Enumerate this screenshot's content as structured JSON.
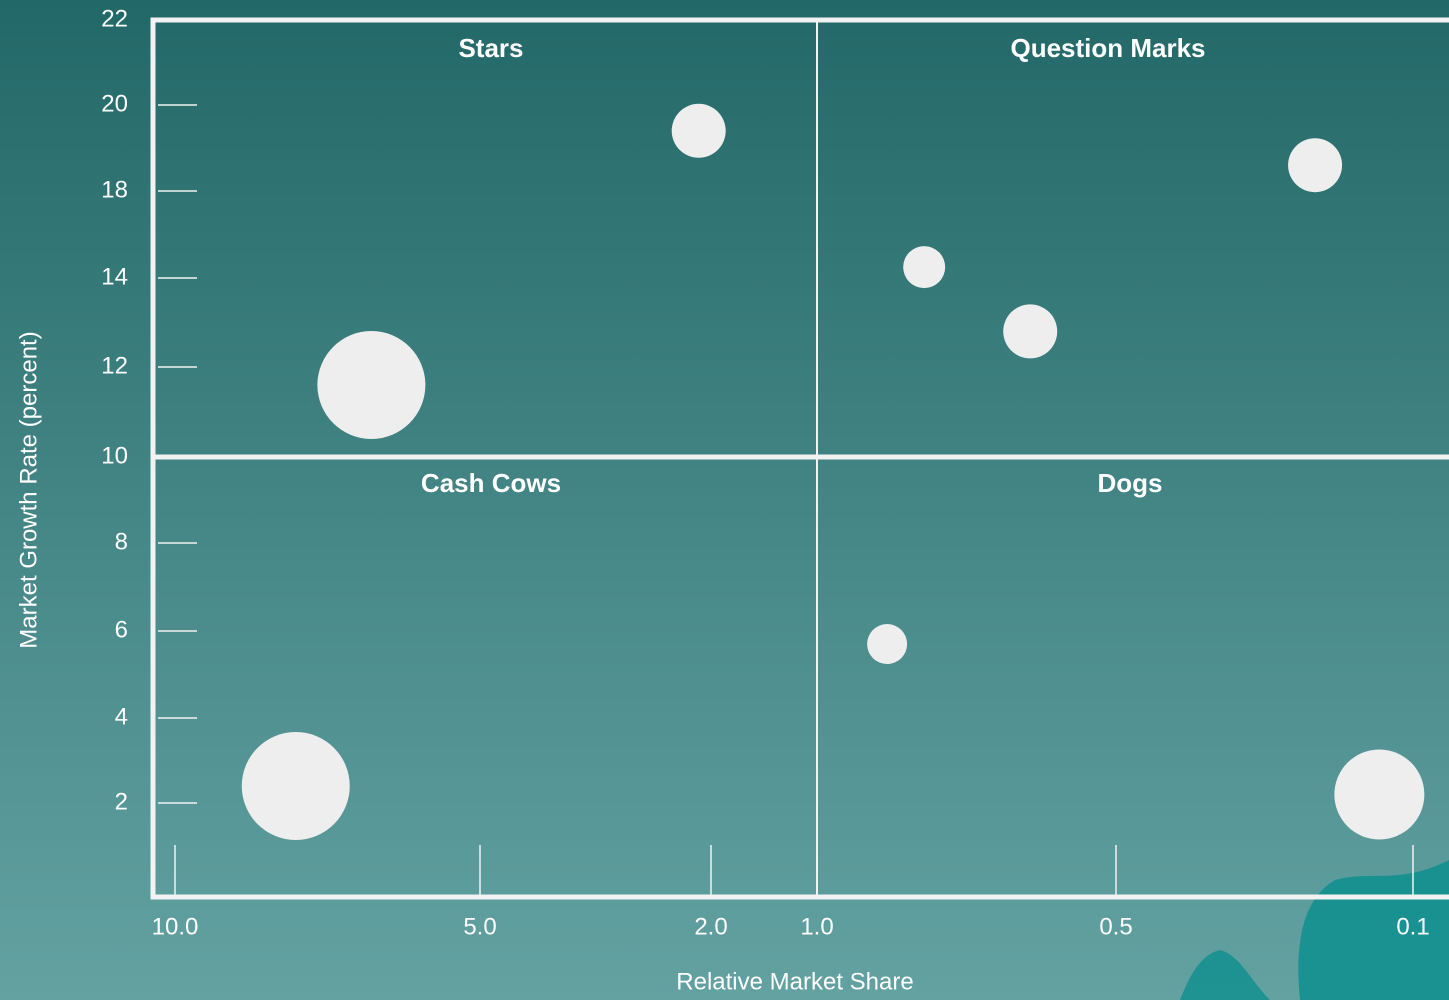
{
  "chart_data": {
    "type": "bubble",
    "x_label": "Relative Market Share",
    "y_label": "Market Growth Rate (percent)",
    "quadrant_labels": [
      "Stars",
      "Question Marks",
      "Cash Cows",
      "Dogs"
    ],
    "x": [
      6.4,
      2.1,
      0.17,
      0.78,
      0.61,
      0.85,
      0.12,
      7.6
    ],
    "values": [
      11.6,
      19.4,
      18.6,
      14.5,
      12.8,
      5.7,
      2.2,
      2.4
    ],
    "sizes": [
      54,
      27,
      27,
      21,
      27,
      20,
      45,
      54
    ],
    "color": "#eeeeee",
    "xlog": true,
    "xticks": [
      {
        "value": 10,
        "label": "10.0"
      },
      {
        "value": 5,
        "label": "5.0"
      },
      {
        "value": 2,
        "label": "2.0"
      },
      {
        "value": 1,
        "label": "1.0"
      },
      0.5,
      0.1
    ],
    "yticks": [
      22,
      20,
      18,
      14,
      12,
      10,
      8,
      6,
      4,
      2
    ]
  }
}
